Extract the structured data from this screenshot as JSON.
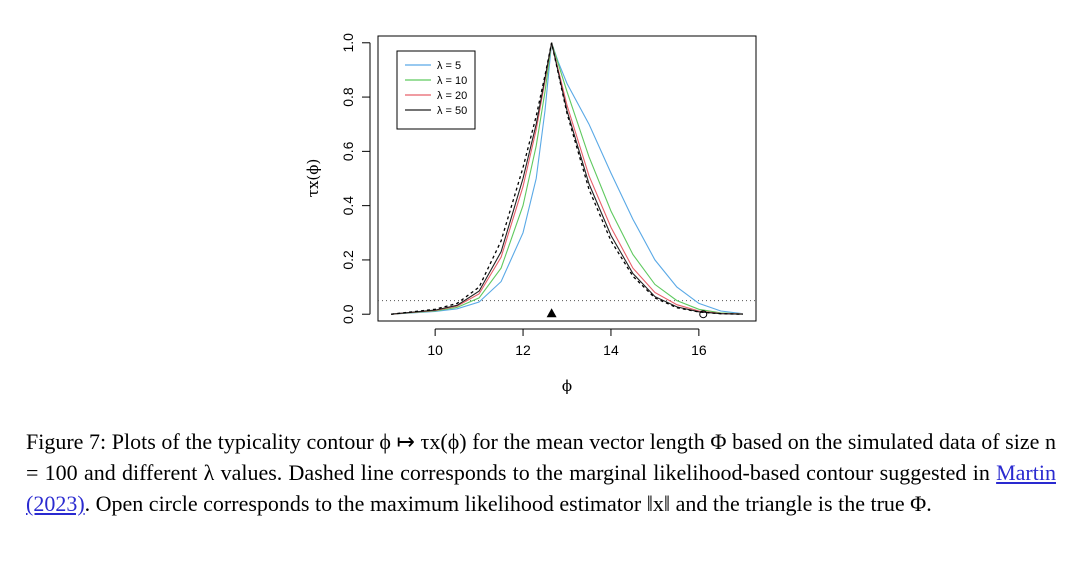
{
  "chart_data": {
    "type": "line",
    "xlabel": "ϕ",
    "ylabel": "τx(ϕ)",
    "xlim": [
      8.7,
      17.3
    ],
    "ylim": [
      -0.025,
      1.025
    ],
    "xticks": [
      "10",
      "12",
      "14",
      "16"
    ],
    "yticks": [
      "0.0",
      "0.2",
      "0.4",
      "0.6",
      "0.8",
      "1.0"
    ],
    "grid": false,
    "legend_position": "top-left",
    "reference_line": {
      "y": 0.05,
      "style": "dotted"
    },
    "markers": {
      "triangle": {
        "x": 12.65,
        "y": 0.0
      },
      "open_circle": {
        "x": 16.1,
        "y": 0.0
      }
    },
    "series": [
      {
        "name": "λ = 5",
        "color": "#5aa9e6",
        "x": [
          9.0,
          10.0,
          10.5,
          11.0,
          11.5,
          12.0,
          12.3,
          12.5,
          12.65,
          12.8,
          13.0,
          13.5,
          14.0,
          14.5,
          15.0,
          15.5,
          16.0,
          16.5,
          17.0
        ],
        "y": [
          0.0,
          0.01,
          0.02,
          0.045,
          0.12,
          0.3,
          0.5,
          0.75,
          1.0,
          0.93,
          0.85,
          0.7,
          0.52,
          0.35,
          0.2,
          0.1,
          0.04,
          0.012,
          0.002
        ]
      },
      {
        "name": "λ = 10",
        "color": "#5fc95f",
        "x": [
          9.0,
          10.0,
          10.5,
          11.0,
          11.5,
          12.0,
          12.3,
          12.5,
          12.65,
          13.0,
          13.5,
          14.0,
          14.5,
          15.0,
          15.5,
          16.0,
          16.5,
          17.0
        ],
        "y": [
          0.0,
          0.012,
          0.025,
          0.06,
          0.17,
          0.4,
          0.62,
          0.82,
          1.0,
          0.82,
          0.58,
          0.38,
          0.22,
          0.11,
          0.05,
          0.018,
          0.005,
          0.001
        ]
      },
      {
        "name": "λ = 20",
        "color": "#e8606a",
        "x": [
          9.0,
          10.0,
          10.5,
          11.0,
          11.5,
          12.0,
          12.3,
          12.5,
          12.65,
          13.0,
          13.5,
          14.0,
          14.5,
          15.0,
          15.5,
          16.0,
          16.5,
          17.0
        ],
        "y": [
          0.0,
          0.014,
          0.03,
          0.075,
          0.21,
          0.47,
          0.68,
          0.86,
          1.0,
          0.77,
          0.51,
          0.32,
          0.17,
          0.08,
          0.035,
          0.012,
          0.003,
          0.001
        ]
      },
      {
        "name": "λ = 50",
        "color": "#222222",
        "x": [
          9.0,
          10.0,
          10.5,
          11.0,
          11.5,
          12.0,
          12.3,
          12.5,
          12.65,
          13.0,
          13.5,
          14.0,
          14.5,
          15.0,
          15.5,
          16.0,
          16.5,
          17.0
        ],
        "y": [
          0.0,
          0.015,
          0.033,
          0.085,
          0.23,
          0.5,
          0.7,
          0.87,
          1.0,
          0.75,
          0.48,
          0.29,
          0.15,
          0.065,
          0.027,
          0.009,
          0.002,
          0.0
        ]
      },
      {
        "color": "#000000",
        "dashed": true,
        "x": [
          9.0,
          10.0,
          10.5,
          11.0,
          11.5,
          12.0,
          12.3,
          12.5,
          12.65,
          13.0,
          13.5,
          14.0,
          14.5,
          15.0,
          15.5,
          16.0,
          16.5,
          17.0
        ],
        "y": [
          0.0,
          0.018,
          0.04,
          0.1,
          0.27,
          0.54,
          0.73,
          0.88,
          1.0,
          0.74,
          0.46,
          0.27,
          0.14,
          0.06,
          0.024,
          0.008,
          0.002,
          0.0
        ]
      }
    ]
  },
  "caption": {
    "part1": "Figure 7: Plots of the typicality contour ϕ ↦ τx(ϕ) for the mean vector length Φ based on the simulated data of size n = 100 and different λ values. Dashed line corresponds to the marginal likelihood-based contour suggested in ",
    "ref": "Martin (2023)",
    "part2": ". Open circle corresponds to the maximum likelihood estimator ‖x‖ and the triangle is the true Φ."
  }
}
